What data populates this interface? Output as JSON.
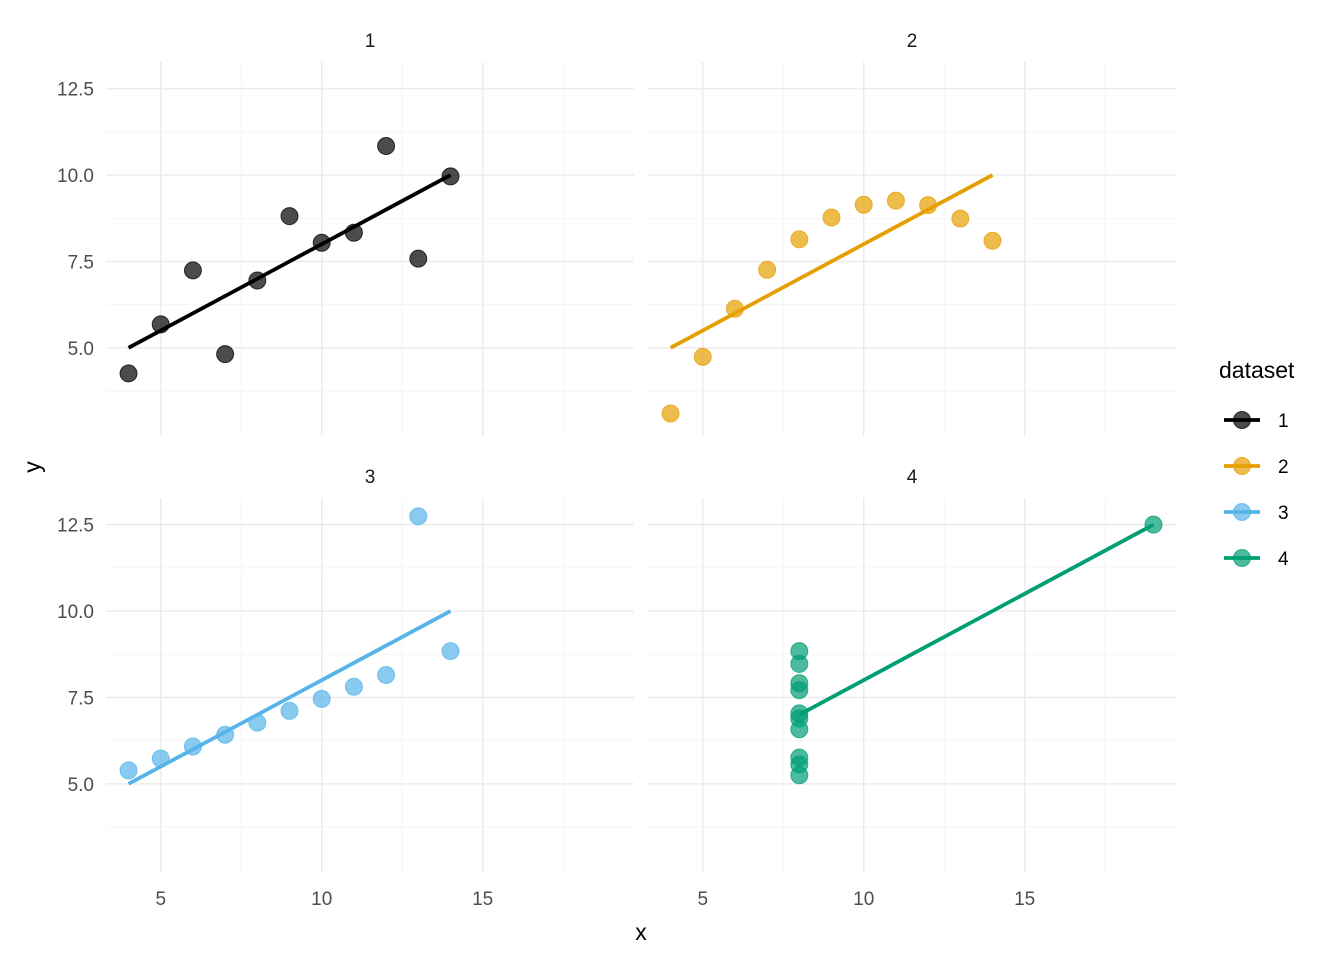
{
  "chart_data": {
    "type": "scatter",
    "facet": "dataset",
    "xlabel": "x",
    "ylabel": "y",
    "xlim": [
      3.3,
      19.7
    ],
    "ylim": [
      2.45,
      13.27
    ],
    "x_ticks": [
      5,
      10,
      15
    ],
    "y_ticks": [
      5.0,
      7.5,
      10.0,
      12.5
    ],
    "x_tick_labels": [
      "5",
      "10",
      "15"
    ],
    "y_tick_labels": [
      "5.0",
      "7.5",
      "10.0",
      "12.5"
    ],
    "grid": true,
    "legend": {
      "title": "dataset",
      "position": "right"
    },
    "series": [
      {
        "name": "1",
        "color": "#000000",
        "points": [
          [
            10,
            8.04
          ],
          [
            8,
            6.95
          ],
          [
            13,
            7.58
          ],
          [
            9,
            8.81
          ],
          [
            11,
            8.33
          ],
          [
            14,
            9.96
          ],
          [
            6,
            7.24
          ],
          [
            4,
            4.26
          ],
          [
            12,
            10.84
          ],
          [
            7,
            4.82
          ],
          [
            5,
            5.68
          ]
        ],
        "fit": [
          [
            4,
            5.0
          ],
          [
            14,
            10.0
          ]
        ]
      },
      {
        "name": "2",
        "color": "#E69F00",
        "points": [
          [
            10,
            9.14
          ],
          [
            8,
            8.14
          ],
          [
            13,
            8.74
          ],
          [
            9,
            8.77
          ],
          [
            11,
            9.26
          ],
          [
            14,
            8.1
          ],
          [
            6,
            6.13
          ],
          [
            4,
            3.1
          ],
          [
            12,
            9.13
          ],
          [
            7,
            7.26
          ],
          [
            5,
            4.74
          ]
        ],
        "fit": [
          [
            4,
            5.0
          ],
          [
            14,
            10.0
          ]
        ]
      },
      {
        "name": "3",
        "color": "#56B4E9",
        "points": [
          [
            10,
            7.46
          ],
          [
            8,
            6.77
          ],
          [
            13,
            12.74
          ],
          [
            9,
            7.11
          ],
          [
            11,
            7.81
          ],
          [
            14,
            8.84
          ],
          [
            6,
            6.08
          ],
          [
            4,
            5.39
          ],
          [
            12,
            8.15
          ],
          [
            7,
            6.42
          ],
          [
            5,
            5.73
          ]
        ],
        "fit": [
          [
            4,
            5.0
          ],
          [
            14,
            10.0
          ]
        ]
      },
      {
        "name": "4",
        "color": "#009E73",
        "points": [
          [
            8,
            6.58
          ],
          [
            8,
            5.76
          ],
          [
            8,
            7.71
          ],
          [
            8,
            8.84
          ],
          [
            8,
            8.47
          ],
          [
            8,
            7.04
          ],
          [
            8,
            5.25
          ],
          [
            19,
            12.5
          ],
          [
            8,
            5.56
          ],
          [
            8,
            7.91
          ],
          [
            8,
            6.89
          ]
        ],
        "fit": [
          [
            8,
            7.0
          ],
          [
            19,
            12.5
          ]
        ]
      }
    ]
  }
}
